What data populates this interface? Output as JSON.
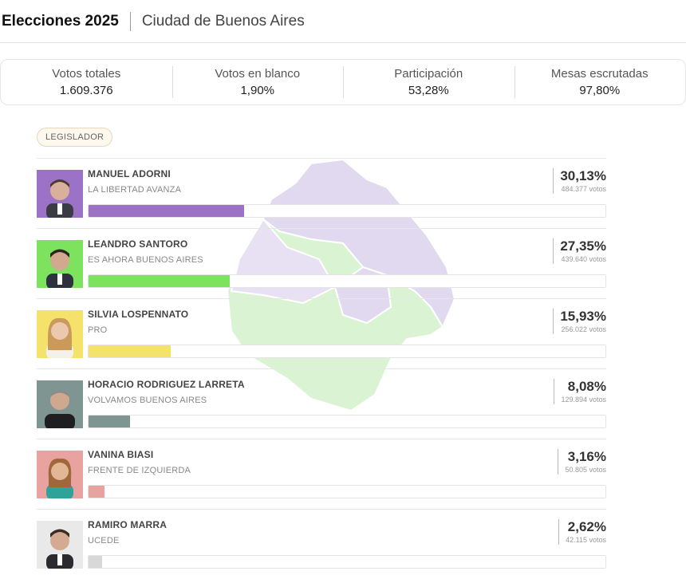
{
  "header": {
    "title": "Elecciones 2025",
    "subtitle": "Ciudad de Buenos Aires"
  },
  "stats": [
    {
      "label": "Votos totales",
      "value": "1.609.376"
    },
    {
      "label": "Votos en blanco",
      "value": "1,90%"
    },
    {
      "label": "Participación",
      "value": "53,28%"
    },
    {
      "label": "Mesas escrutadas",
      "value": "97,80%"
    }
  ],
  "category_badge": "LEGISLADOR",
  "candidates": [
    {
      "name": "MANUEL ADORNI",
      "party": "LA LIBERTAD AVANZA",
      "pct": "30,13%",
      "votes": "484.377 votos",
      "share": 30.13,
      "color": "#9b72c5"
    },
    {
      "name": "LEANDRO SANTORO",
      "party": "ES AHORA BUENOS AIRES",
      "pct": "27,35%",
      "votes": "439.640 votos",
      "share": 27.35,
      "color": "#7de35e"
    },
    {
      "name": "SILVIA LOSPENNATO",
      "party": "PRO",
      "pct": "15,93%",
      "votes": "256.022 votos",
      "share": 15.93,
      "color": "#f5e26a"
    },
    {
      "name": "HORACIO RODRIGUEZ LARRETA",
      "party": "VOLVAMOS BUENOS AIRES",
      "pct": "8,08%",
      "votes": "129.894 votos",
      "share": 8.08,
      "color": "#7f9591"
    },
    {
      "name": "VANINA BIASI",
      "party": "FRENTE DE IZQUIERDA",
      "pct": "3,16%",
      "votes": "50.805 votos",
      "share": 3.16,
      "color": "#e8a3a0"
    },
    {
      "name": "RAMIRO MARRA",
      "party": "UCEDE",
      "pct": "2,62%",
      "votes": "42.115 votos",
      "share": 2.62,
      "color": "#d8d8d8"
    }
  ]
}
